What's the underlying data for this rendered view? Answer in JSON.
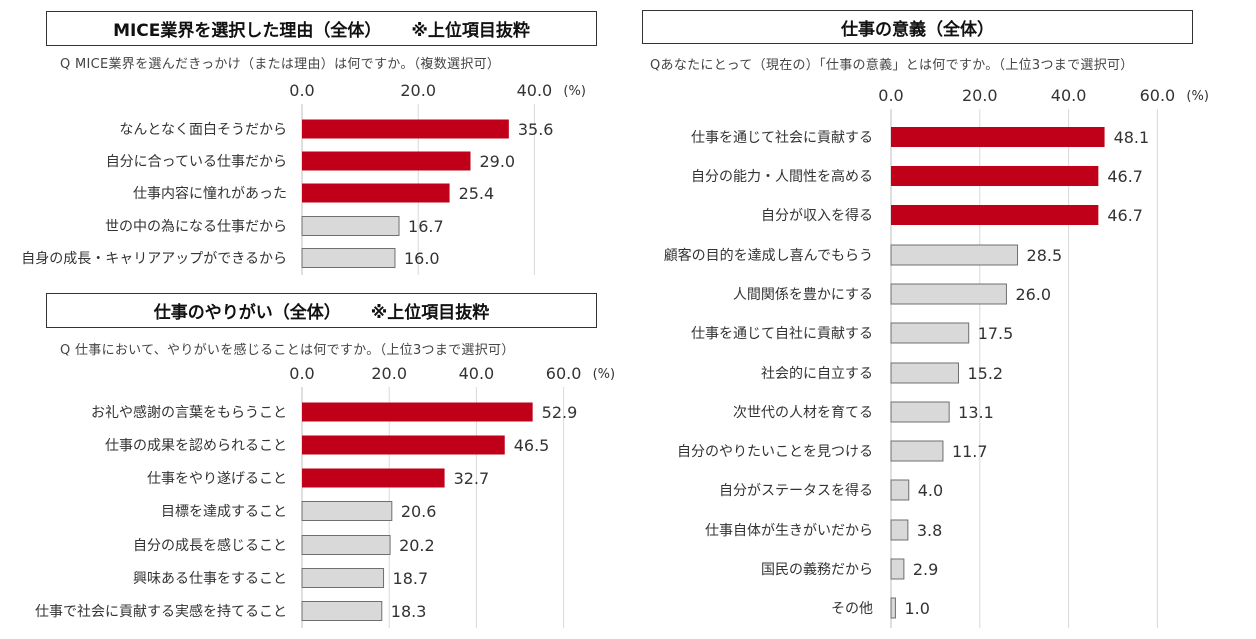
{
  "colors": {
    "highlight": "#c00018",
    "other": "#d9d9d9",
    "other_stroke": "#6f6f6f",
    "gridline": "#d9d9d9"
  },
  "chart_data": [
    {
      "id": "mice",
      "type": "bar",
      "orientation": "horizontal",
      "title": "MICE業界を選択した理由（全体）",
      "note": "※上位項目抜粋",
      "question": "Q MICE業界を選んだきっかけ（または理由）は何ですか。（複数選択可）",
      "unit": "(%)",
      "xlim": [
        0,
        40
      ],
      "ticks": [
        0,
        20,
        40
      ],
      "tick_labels": [
        "0.0",
        "20.0",
        "40.0"
      ],
      "highlight_count": 3,
      "categories": [
        "なんとなく面白そうだから",
        "自分に合っている仕事だから",
        "仕事内容に憧れがあった",
        "世の中の為になる仕事だから",
        "自身の成長・キャリアアップができるから"
      ],
      "values": [
        35.6,
        29.0,
        25.4,
        16.7,
        16.0
      ],
      "value_labels": [
        "35.6",
        "29.0",
        "25.4",
        "16.7",
        "16.0"
      ]
    },
    {
      "id": "yarigai",
      "type": "bar",
      "orientation": "horizontal",
      "title": "仕事のやりがい（全体）",
      "note": "※上位項目抜粋",
      "question": "Q 仕事において、やりがいを感じることは何ですか。（上位3つまで選択可）",
      "unit": "(%)",
      "xlim": [
        0,
        60
      ],
      "ticks": [
        0,
        20,
        40,
        60
      ],
      "tick_labels": [
        "0.0",
        "20.0",
        "40.0",
        "60.0"
      ],
      "highlight_count": 3,
      "categories": [
        "お礼や感謝の言葉をもらうこと",
        "仕事の成果を認められること",
        "仕事をやり遂げること",
        "目標を達成すること",
        "自分の成長を感じること",
        "興味ある仕事をすること",
        "仕事で社会に貢献する実感を持てること"
      ],
      "values": [
        52.9,
        46.5,
        32.7,
        20.6,
        20.2,
        18.7,
        18.3
      ],
      "value_labels": [
        "52.9",
        "46.5",
        "32.7",
        "20.6",
        "20.2",
        "18.7",
        "18.3"
      ]
    },
    {
      "id": "igi",
      "type": "bar",
      "orientation": "horizontal",
      "title": "仕事の意義（全体）",
      "note": "",
      "question": "Qあなたにとって（現在の）「仕事の意義」とは何ですか。（上位3つまで選択可）",
      "unit": "(%)",
      "xlim": [
        0,
        60
      ],
      "ticks": [
        0,
        20,
        40,
        60
      ],
      "tick_labels": [
        "0.0",
        "20.0",
        "40.0",
        "60.0"
      ],
      "highlight_count": 3,
      "categories": [
        "仕事を通じて社会に貢献する",
        "自分の能力・人間性を高める",
        "自分が収入を得る",
        "顧客の目的を達成し喜んでもらう",
        "人間関係を豊かにする",
        "仕事を通じて自社に貢献する",
        "社会的に自立する",
        "次世代の人材を育てる",
        "自分のやりたいことを見つける",
        "自分がステータスを得る",
        "仕事自体が生きがいだから",
        "国民の義務だから",
        "その他"
      ],
      "values": [
        48.1,
        46.7,
        46.7,
        28.5,
        26.0,
        17.5,
        15.2,
        13.1,
        11.7,
        4.0,
        3.8,
        2.9,
        1.0
      ],
      "value_labels": [
        "48.1",
        "46.7",
        "46.7",
        "28.5",
        "26.0",
        "17.5",
        "15.2",
        "13.1",
        "11.7",
        "4.0",
        "3.8",
        "2.9",
        "1.0"
      ]
    }
  ]
}
